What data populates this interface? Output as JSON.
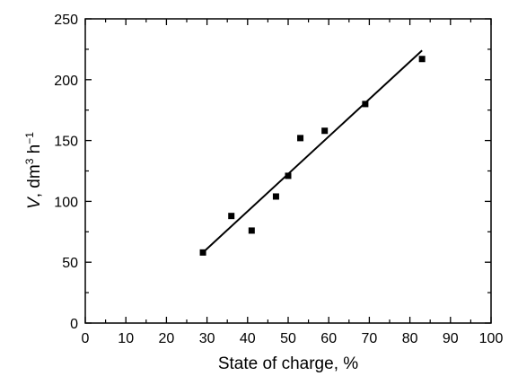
{
  "chart_data": {
    "type": "scatter",
    "title": "",
    "xlabel": "State of charge, %",
    "ylabel": {
      "var": "V",
      "rest": ", dm",
      "sup1": "3",
      "mid": " h",
      "sup2": "−1"
    },
    "xlim": [
      0,
      100
    ],
    "ylim": [
      0,
      250
    ],
    "x_ticks": [
      0,
      10,
      20,
      30,
      40,
      50,
      60,
      70,
      80,
      90,
      100
    ],
    "y_ticks": [
      0,
      50,
      100,
      150,
      200,
      250
    ],
    "grid": false,
    "legend": "none",
    "series": [
      {
        "points": [
          {
            "x": 29,
            "y": 58
          },
          {
            "x": 36,
            "y": 88
          },
          {
            "x": 41,
            "y": 76
          },
          {
            "x": 47,
            "y": 104
          },
          {
            "x": 50,
            "y": 121
          },
          {
            "x": 53,
            "y": 152
          },
          {
            "x": 59,
            "y": 158
          },
          {
            "x": 69,
            "y": 180
          },
          {
            "x": 83,
            "y": 217
          }
        ],
        "marker": "square",
        "color": "#000000"
      }
    ],
    "fit_line": {
      "x": [
        29,
        83
      ],
      "y": [
        58,
        224
      ],
      "color": "#000000"
    }
  }
}
